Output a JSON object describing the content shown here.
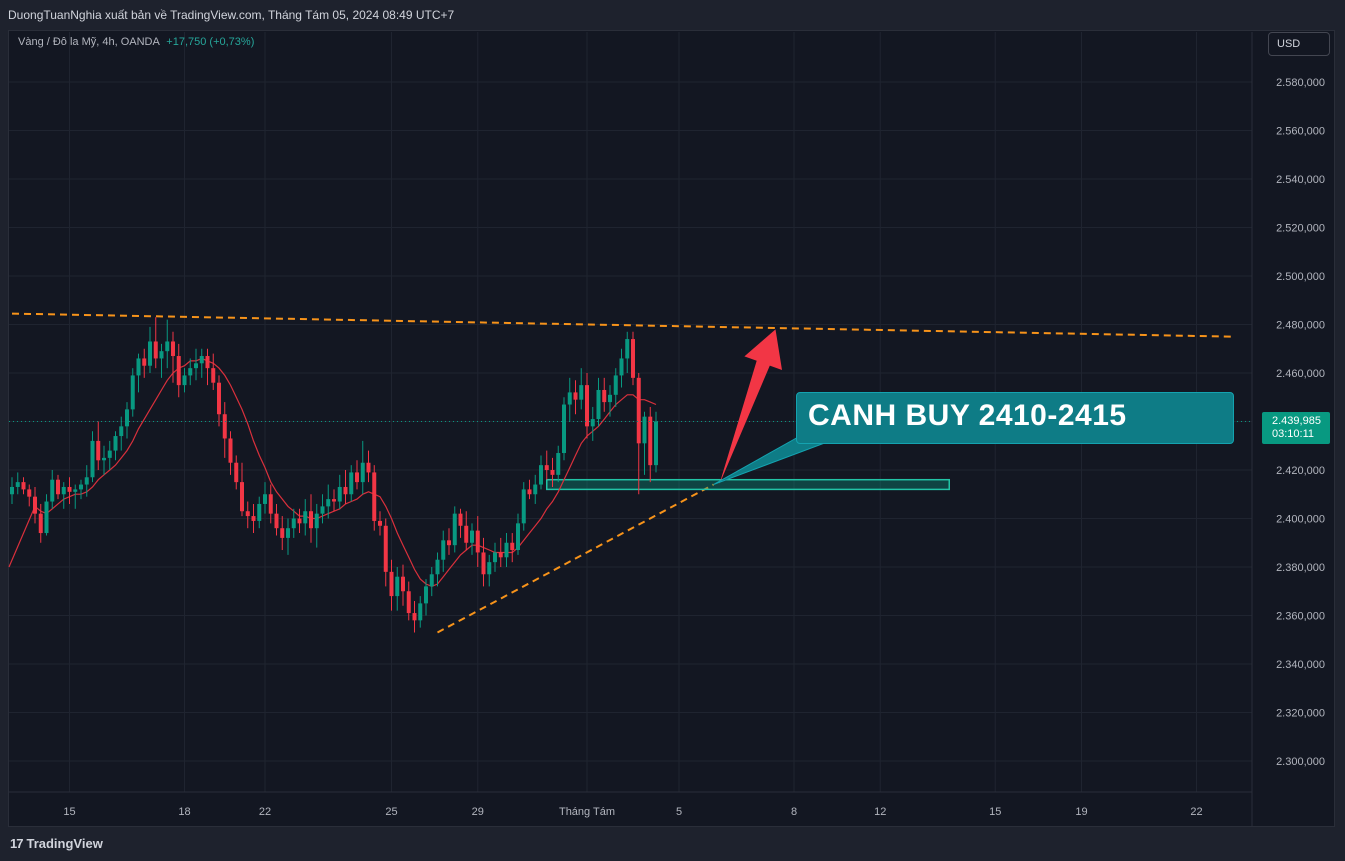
{
  "header": {
    "published": "DuongTuanNghia xuất bản về TradingView.com, Tháng Tám 05, 2024 08:49 UTC+7"
  },
  "legend": {
    "symbol": "Vàng / Đô la Mỹ, 4h, OANDA",
    "change": "+17,750 (+0,73%)"
  },
  "currency_button": "USD",
  "price_tag": {
    "price": "2.439,985",
    "countdown": "03:10:11"
  },
  "annotation": {
    "text": "CANH BUY 2410-2415"
  },
  "brand": {
    "name": "TradingView",
    "mark": "17"
  },
  "colors": {
    "up": "#089981",
    "down": "#f23645",
    "ma": "#d9303c",
    "trendline": "#f7931a",
    "arrow": "#f23645",
    "zone": "#089981",
    "callout": "#0e7c86",
    "background": "#131722"
  },
  "chart_data": {
    "type": "candlestick",
    "ylim": [
      2290,
      2595
    ],
    "y_ticks": [
      "2.580,000",
      "2.560,000",
      "2.540,000",
      "2.520,000",
      "2.500,000",
      "2.480,000",
      "2.460,000",
      "2.440,000",
      "2.420,000",
      "2.400,000",
      "2.380,000",
      "2.360,000",
      "2.340,000",
      "2.320,000",
      "2.300,000"
    ],
    "y_tick_values": [
      2580,
      2560,
      2540,
      2520,
      2500,
      2480,
      2460,
      2440,
      2420,
      2400,
      2380,
      2360,
      2340,
      2320,
      2300
    ],
    "x_ticks": [
      {
        "label": "15",
        "bar": 10
      },
      {
        "label": "18",
        "bar": 30
      },
      {
        "label": "22",
        "bar": 44
      },
      {
        "label": "25",
        "bar": 66
      },
      {
        "label": "29",
        "bar": 81
      },
      {
        "label": "Tháng Tám",
        "bar": 100
      },
      {
        "label": "5",
        "bar": 116
      },
      {
        "label": "8",
        "bar": 136
      },
      {
        "label": "12",
        "bar": 151
      },
      {
        "label": "15",
        "bar": 171
      },
      {
        "label": "19",
        "bar": 186
      },
      {
        "label": "22",
        "bar": 206
      }
    ],
    "current_price": 2439.985,
    "candles": [
      [
        2410,
        2417,
        2406,
        2413
      ],
      [
        2413,
        2419,
        2410,
        2415
      ],
      [
        2415,
        2417,
        2410,
        2412
      ],
      [
        2412,
        2414,
        2405,
        2409
      ],
      [
        2409,
        2413,
        2398,
        2402
      ],
      [
        2402,
        2406,
        2390,
        2394
      ],
      [
        2394,
        2410,
        2393,
        2407
      ],
      [
        2407,
        2420,
        2404,
        2416
      ],
      [
        2416,
        2418,
        2408,
        2410
      ],
      [
        2410,
        2415,
        2404,
        2413
      ],
      [
        2413,
        2417,
        2406,
        2411
      ],
      [
        2411,
        2414,
        2404,
        2412
      ],
      [
        2412,
        2416,
        2408,
        2414
      ],
      [
        2414,
        2422,
        2409,
        2417
      ],
      [
        2417,
        2436,
        2415,
        2432
      ],
      [
        2432,
        2440,
        2420,
        2424
      ],
      [
        2424,
        2430,
        2418,
        2425
      ],
      [
        2425,
        2432,
        2420,
        2428
      ],
      [
        2428,
        2436,
        2424,
        2434
      ],
      [
        2434,
        2442,
        2428,
        2438
      ],
      [
        2438,
        2448,
        2433,
        2445
      ],
      [
        2445,
        2462,
        2442,
        2459
      ],
      [
        2459,
        2468,
        2452,
        2466
      ],
      [
        2466,
        2470,
        2458,
        2463
      ],
      [
        2463,
        2479,
        2460,
        2473
      ],
      [
        2473,
        2483,
        2462,
        2466
      ],
      [
        2466,
        2472,
        2458,
        2469
      ],
      [
        2469,
        2482,
        2462,
        2473
      ],
      [
        2473,
        2477,
        2456,
        2467
      ],
      [
        2467,
        2472,
        2450,
        2455
      ],
      [
        2455,
        2462,
        2452,
        2459
      ],
      [
        2459,
        2466,
        2455,
        2462
      ],
      [
        2462,
        2470,
        2457,
        2464
      ],
      [
        2464,
        2470,
        2458,
        2467
      ],
      [
        2467,
        2470,
        2455,
        2462
      ],
      [
        2462,
        2468,
        2453,
        2456
      ],
      [
        2456,
        2459,
        2438,
        2443
      ],
      [
        2443,
        2448,
        2425,
        2433
      ],
      [
        2433,
        2436,
        2418,
        2423
      ],
      [
        2423,
        2426,
        2412,
        2415
      ],
      [
        2415,
        2423,
        2401,
        2403
      ],
      [
        2403,
        2407,
        2396,
        2401
      ],
      [
        2401,
        2406,
        2394,
        2399
      ],
      [
        2399,
        2409,
        2396,
        2406
      ],
      [
        2406,
        2415,
        2402,
        2410
      ],
      [
        2410,
        2414,
        2398,
        2402
      ],
      [
        2402,
        2406,
        2393,
        2396
      ],
      [
        2396,
        2401,
        2387,
        2392
      ],
      [
        2392,
        2400,
        2385,
        2396
      ],
      [
        2396,
        2404,
        2392,
        2400
      ],
      [
        2400,
        2404,
        2394,
        2398
      ],
      [
        2398,
        2408,
        2393,
        2403
      ],
      [
        2403,
        2410,
        2390,
        2396
      ],
      [
        2396,
        2406,
        2388,
        2402
      ],
      [
        2402,
        2410,
        2398,
        2405
      ],
      [
        2405,
        2414,
        2400,
        2408
      ],
      [
        2408,
        2412,
        2403,
        2407
      ],
      [
        2407,
        2418,
        2404,
        2413
      ],
      [
        2413,
        2420,
        2406,
        2410
      ],
      [
        2410,
        2422,
        2407,
        2419
      ],
      [
        2419,
        2424,
        2412,
        2415
      ],
      [
        2415,
        2432,
        2410,
        2423
      ],
      [
        2423,
        2428,
        2415,
        2419
      ],
      [
        2419,
        2422,
        2395,
        2399
      ],
      [
        2399,
        2403,
        2393,
        2397
      ],
      [
        2397,
        2400,
        2372,
        2378
      ],
      [
        2378,
        2383,
        2362,
        2368
      ],
      [
        2368,
        2380,
        2362,
        2376
      ],
      [
        2376,
        2381,
        2364,
        2370
      ],
      [
        2370,
        2374,
        2358,
        2361
      ],
      [
        2361,
        2366,
        2353,
        2358
      ],
      [
        2358,
        2368,
        2355,
        2365
      ],
      [
        2365,
        2375,
        2360,
        2372
      ],
      [
        2372,
        2380,
        2368,
        2377
      ],
      [
        2377,
        2386,
        2372,
        2383
      ],
      [
        2383,
        2395,
        2378,
        2391
      ],
      [
        2391,
        2396,
        2385,
        2389
      ],
      [
        2389,
        2405,
        2386,
        2402
      ],
      [
        2402,
        2404,
        2392,
        2397
      ],
      [
        2397,
        2403,
        2387,
        2390
      ],
      [
        2390,
        2398,
        2385,
        2395
      ],
      [
        2395,
        2401,
        2380,
        2386
      ],
      [
        2386,
        2392,
        2372,
        2377
      ],
      [
        2377,
        2385,
        2372,
        2382
      ],
      [
        2382,
        2390,
        2378,
        2386
      ],
      [
        2386,
        2392,
        2380,
        2384
      ],
      [
        2384,
        2394,
        2380,
        2390
      ],
      [
        2390,
        2394,
        2382,
        2387
      ],
      [
        2387,
        2402,
        2385,
        2398
      ],
      [
        2398,
        2415,
        2395,
        2412
      ],
      [
        2412,
        2416,
        2408,
        2410
      ],
      [
        2410,
        2418,
        2406,
        2414
      ],
      [
        2414,
        2426,
        2412,
        2422
      ],
      [
        2422,
        2428,
        2416,
        2420
      ],
      [
        2420,
        2425,
        2413,
        2418
      ],
      [
        2418,
        2430,
        2415,
        2427
      ],
      [
        2427,
        2450,
        2424,
        2447
      ],
      [
        2447,
        2458,
        2440,
        2452
      ],
      [
        2452,
        2457,
        2443,
        2449
      ],
      [
        2449,
        2462,
        2445,
        2455
      ],
      [
        2455,
        2460,
        2433,
        2438
      ],
      [
        2438,
        2446,
        2432,
        2441
      ],
      [
        2441,
        2458,
        2438,
        2453
      ],
      [
        2453,
        2458,
        2444,
        2448
      ],
      [
        2448,
        2455,
        2442,
        2451
      ],
      [
        2451,
        2462,
        2446,
        2459
      ],
      [
        2459,
        2470,
        2454,
        2466
      ],
      [
        2466,
        2477,
        2460,
        2474
      ],
      [
        2474,
        2477,
        2455,
        2458
      ],
      [
        2458,
        2460,
        2410,
        2431
      ],
      [
        2431,
        2444,
        2418,
        2442
      ],
      [
        2442,
        2446,
        2415,
        2422
      ],
      [
        2422,
        2444,
        2419,
        2440
      ]
    ],
    "ma": [
      null,
      null,
      null,
      null,
      2405,
      2403,
      2402,
      2404,
      2406,
      2408,
      2409,
      2410,
      2410,
      2411,
      2413,
      2416,
      2418,
      2420,
      2422,
      2425,
      2428,
      2432,
      2437,
      2441,
      2445,
      2449,
      2453,
      2457,
      2460,
      2462,
      2463,
      2465,
      2465,
      2466,
      2465,
      2464,
      2462,
      2459,
      2455,
      2450,
      2445,
      2439,
      2432,
      2426,
      2421,
      2415,
      2411,
      2408,
      2405,
      2403,
      2401,
      2401,
      2400,
      2400,
      2401,
      2402,
      2403,
      2404,
      2406,
      2407,
      2408,
      2410,
      2411,
      2410,
      2409,
      2405,
      2400,
      2394,
      2389,
      2384,
      2379,
      2375,
      2373,
      2372,
      2373,
      2376,
      2379,
      2382,
      2385,
      2387,
      2389,
      2389,
      2388,
      2387,
      2386,
      2386,
      2386,
      2386,
      2388,
      2391,
      2394,
      2397,
      2400,
      2404,
      2407,
      2411,
      2416,
      2421,
      2426,
      2431,
      2434,
      2436,
      2438,
      2441,
      2444,
      2447,
      2449,
      2451,
      2451,
      2449,
      2449,
      2448,
      2447
    ],
    "trendlines": [
      {
        "name": "resistance",
        "points": [
          [
            0,
            2484.5
          ],
          [
            212,
            2475
          ]
        ]
      },
      {
        "name": "support",
        "points": [
          [
            74,
            2353
          ],
          [
            122,
            2414
          ]
        ]
      }
    ],
    "zone": {
      "from_bar": 93,
      "to_bar": 163,
      "low": 2412,
      "high": 2416
    },
    "arrow": {
      "from": [
        123,
        2414
      ],
      "to": [
        130,
        2478
      ]
    },
    "callout_pointer": {
      "bar": 122,
      "price": 2414
    }
  }
}
